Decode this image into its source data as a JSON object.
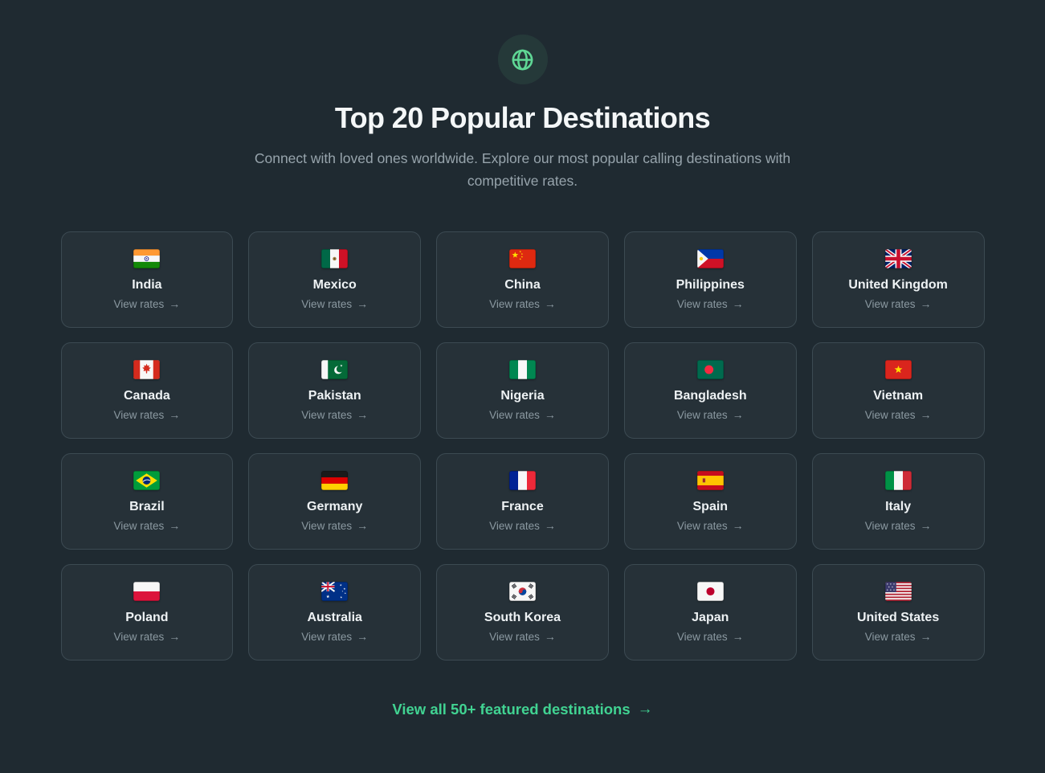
{
  "colors": {
    "page_background": "#1f2a31",
    "card_background": "#263138",
    "card_border": "#3c4a52",
    "accent_green": "#41d392",
    "icon_green": "#5fd795",
    "heading_text": "#f4f7f8",
    "muted_text": "#97a4ac"
  },
  "header": {
    "icon": "globe-icon",
    "title": "Top 20 Popular Destinations",
    "subtitle": "Connect with loved ones worldwide. Explore our most popular calling destinations with competitive rates."
  },
  "grid": {
    "view_rates_label": "View rates",
    "arrow": "→",
    "cards": [
      {
        "country": "India",
        "code": "in",
        "flag_icon": "india-flag-icon"
      },
      {
        "country": "Mexico",
        "code": "mx",
        "flag_icon": "mexico-flag-icon"
      },
      {
        "country": "China",
        "code": "cn",
        "flag_icon": "china-flag-icon"
      },
      {
        "country": "Philippines",
        "code": "ph",
        "flag_icon": "philippines-flag-icon"
      },
      {
        "country": "United Kingdom",
        "code": "gb",
        "flag_icon": "united-kingdom-flag-icon"
      },
      {
        "country": "Canada",
        "code": "ca",
        "flag_icon": "canada-flag-icon"
      },
      {
        "country": "Pakistan",
        "code": "pk",
        "flag_icon": "pakistan-flag-icon"
      },
      {
        "country": "Nigeria",
        "code": "ng",
        "flag_icon": "nigeria-flag-icon"
      },
      {
        "country": "Bangladesh",
        "code": "bd",
        "flag_icon": "bangladesh-flag-icon"
      },
      {
        "country": "Vietnam",
        "code": "vn",
        "flag_icon": "vietnam-flag-icon"
      },
      {
        "country": "Brazil",
        "code": "br",
        "flag_icon": "brazil-flag-icon"
      },
      {
        "country": "Germany",
        "code": "de",
        "flag_icon": "germany-flag-icon"
      },
      {
        "country": "France",
        "code": "fr",
        "flag_icon": "france-flag-icon"
      },
      {
        "country": "Spain",
        "code": "es",
        "flag_icon": "spain-flag-icon"
      },
      {
        "country": "Italy",
        "code": "it",
        "flag_icon": "italy-flag-icon"
      },
      {
        "country": "Poland",
        "code": "pl",
        "flag_icon": "poland-flag-icon"
      },
      {
        "country": "Australia",
        "code": "au",
        "flag_icon": "australia-flag-icon"
      },
      {
        "country": "South Korea",
        "code": "kr",
        "flag_icon": "south-korea-flag-icon"
      },
      {
        "country": "Japan",
        "code": "jp",
        "flag_icon": "japan-flag-icon"
      },
      {
        "country": "United States",
        "code": "us",
        "flag_icon": "united-states-flag-icon"
      }
    ]
  },
  "footer": {
    "link_label": "View all 50+ featured destinations",
    "arrow": "→"
  }
}
